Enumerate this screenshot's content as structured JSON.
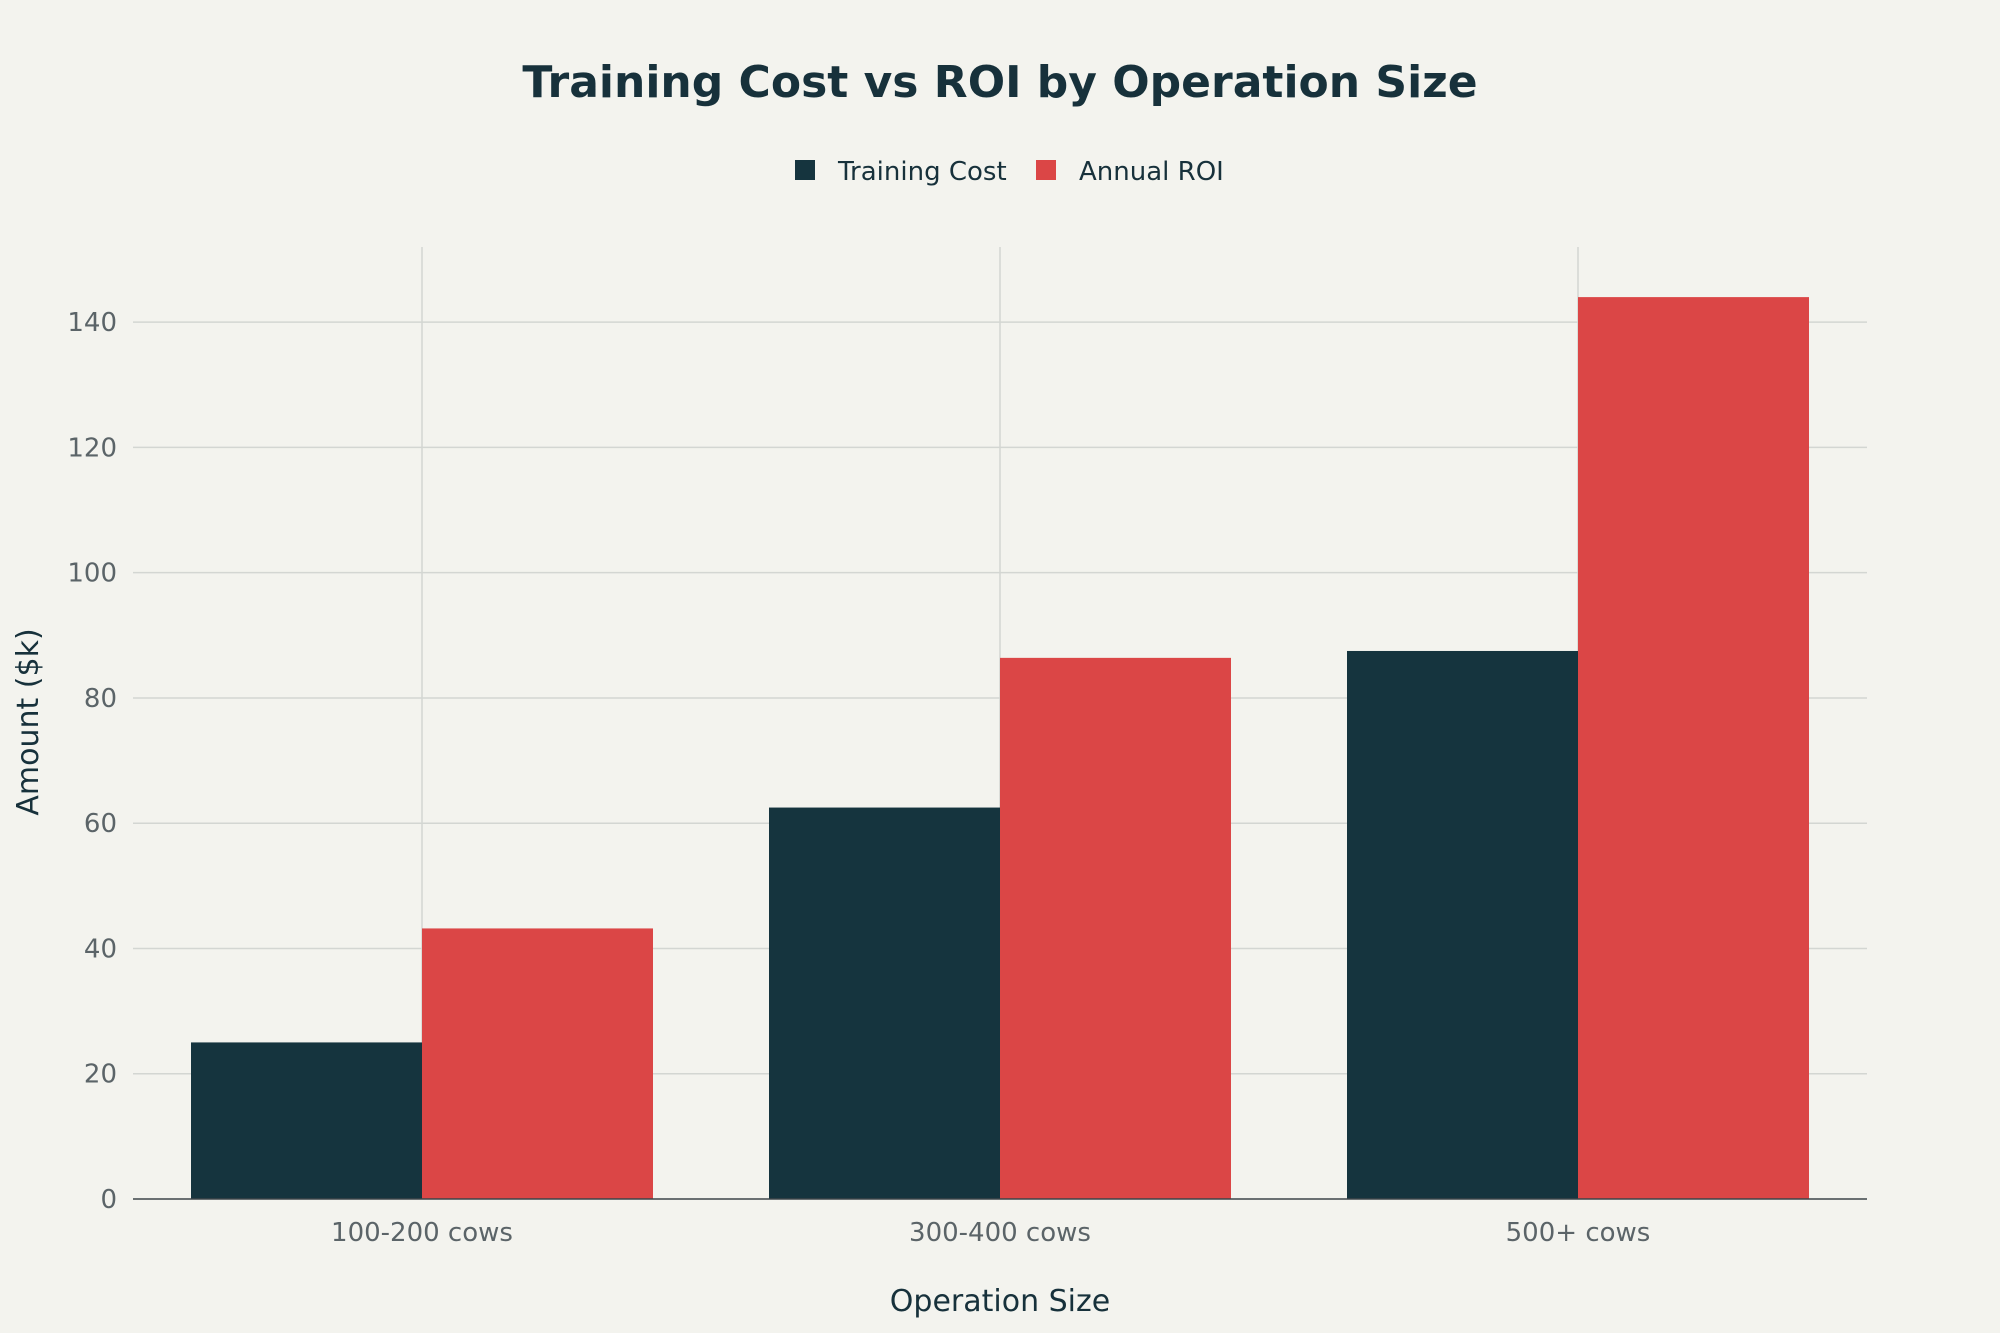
{
  "chart_data": {
    "type": "bar",
    "title": "Training Cost vs ROI by Operation Size",
    "xlabel": "Operation Size",
    "ylabel": "Amount ($k)",
    "categories": [
      "100-200 cows",
      "300-400 cows",
      "500+ cows"
    ],
    "series": [
      {
        "name": "Training Cost",
        "color": "#15343e",
        "values": [
          25,
          62.5,
          87.5
        ]
      },
      {
        "name": "Annual ROI",
        "color": "#db4646",
        "values": [
          43.2,
          86.4,
          144
        ]
      }
    ],
    "ylim": [
      0,
      152
    ],
    "yticks": [
      "0",
      "20",
      "40",
      "60",
      "80",
      "100",
      "120",
      "140"
    ],
    "ytick_values": [
      0,
      20,
      40,
      60,
      80,
      100,
      120,
      140
    ],
    "grid": true,
    "legend_position": "top-center"
  }
}
